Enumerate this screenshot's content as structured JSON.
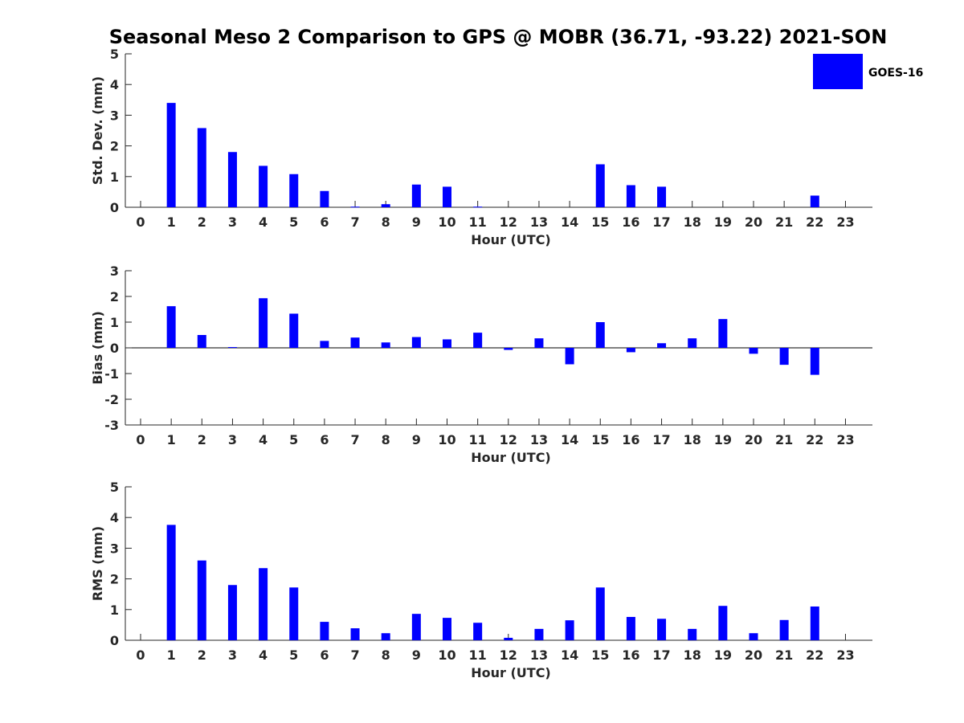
{
  "title": "Seasonal Meso 2 Comparison to GPS @ MOBR (36.71, -93.22) 2021-SON",
  "colors": {
    "bar": "#0000ff",
    "axis": "#262626",
    "text": "#000000"
  },
  "legend": {
    "label": "GOES-16"
  },
  "chart_data": [
    {
      "type": "bar",
      "title": "Seasonal Meso 2 Comparison to GPS @ MOBR (36.71, -93.22) 2021-SON",
      "xlabel": "Hour (UTC)",
      "ylabel": "Std. Dev. (mm)",
      "categories": [
        "0",
        "1",
        "2",
        "3",
        "4",
        "5",
        "6",
        "7",
        "8",
        "9",
        "10",
        "11",
        "12",
        "13",
        "14",
        "15",
        "16",
        "17",
        "18",
        "19",
        "20",
        "21",
        "22",
        "23"
      ],
      "series": [
        {
          "name": "GOES-16",
          "values": [
            null,
            3.4,
            2.58,
            1.8,
            1.35,
            1.08,
            0.53,
            0.02,
            0.1,
            0.74,
            0.67,
            0.02,
            null,
            null,
            null,
            1.4,
            0.72,
            0.67,
            null,
            null,
            null,
            null,
            0.38,
            null
          ]
        }
      ],
      "ylim": [
        0,
        5
      ],
      "yticks": [
        0,
        1,
        2,
        3,
        4,
        5
      ],
      "legend": "top-right",
      "grid": false
    },
    {
      "type": "bar",
      "xlabel": "Hour (UTC)",
      "ylabel": "Bias (mm)",
      "categories": [
        "0",
        "1",
        "2",
        "3",
        "4",
        "5",
        "6",
        "7",
        "8",
        "9",
        "10",
        "11",
        "12",
        "13",
        "14",
        "15",
        "16",
        "17",
        "18",
        "19",
        "20",
        "21",
        "22",
        "23"
      ],
      "series": [
        {
          "name": "GOES-16",
          "values": [
            null,
            1.62,
            0.5,
            0.03,
            1.93,
            1.33,
            0.27,
            0.4,
            0.21,
            0.42,
            0.33,
            0.59,
            -0.08,
            0.37,
            -0.64,
            1.0,
            -0.17,
            0.18,
            0.37,
            1.12,
            -0.23,
            -0.66,
            -1.05,
            null
          ]
        }
      ],
      "ylim": [
        -3,
        3
      ],
      "yticks": [
        -3,
        -2,
        -1,
        0,
        1,
        2,
        3
      ],
      "grid": false
    },
    {
      "type": "bar",
      "xlabel": "Hour (UTC)",
      "ylabel": "RMS (mm)",
      "categories": [
        "0",
        "1",
        "2",
        "3",
        "4",
        "5",
        "6",
        "7",
        "8",
        "9",
        "10",
        "11",
        "12",
        "13",
        "14",
        "15",
        "16",
        "17",
        "18",
        "19",
        "20",
        "21",
        "22",
        "23"
      ],
      "series": [
        {
          "name": "GOES-16",
          "values": [
            null,
            3.76,
            2.6,
            1.8,
            2.35,
            1.72,
            0.6,
            0.39,
            0.23,
            0.86,
            0.73,
            0.57,
            0.08,
            0.37,
            0.65,
            1.72,
            0.76,
            0.7,
            0.37,
            1.12,
            0.23,
            0.66,
            1.1,
            null
          ]
        }
      ],
      "ylim": [
        0,
        5
      ],
      "yticks": [
        0,
        1,
        2,
        3,
        4,
        5
      ],
      "grid": false
    }
  ]
}
